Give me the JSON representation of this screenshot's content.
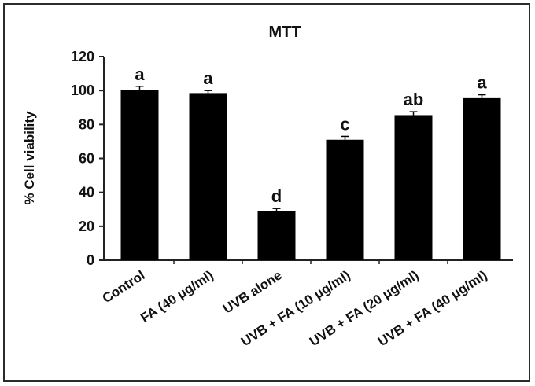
{
  "chart_data": {
    "type": "bar",
    "title": "MTT",
    "xlabel": "",
    "ylabel": "% Cell viability",
    "ylim": [
      0,
      120
    ],
    "yticks": [
      0,
      20,
      40,
      60,
      80,
      100,
      120
    ],
    "categories": [
      "Control",
      "FA (40 μg/ml)",
      "UVB alone",
      "UVB + FA (10 μg/ml)",
      "UVB + FA (20 μg/ml)",
      "UVB + FA (40 μg/ml)"
    ],
    "values": [
      100.5,
      98.5,
      29,
      71,
      85.5,
      95.5
    ],
    "errors": [
      2,
      1.5,
      1.5,
      2,
      2,
      2
    ],
    "annotations": [
      "a",
      "a",
      "d",
      "c",
      "ab",
      "a"
    ],
    "bar_color": "#000000",
    "grid": false,
    "legend": "none"
  }
}
